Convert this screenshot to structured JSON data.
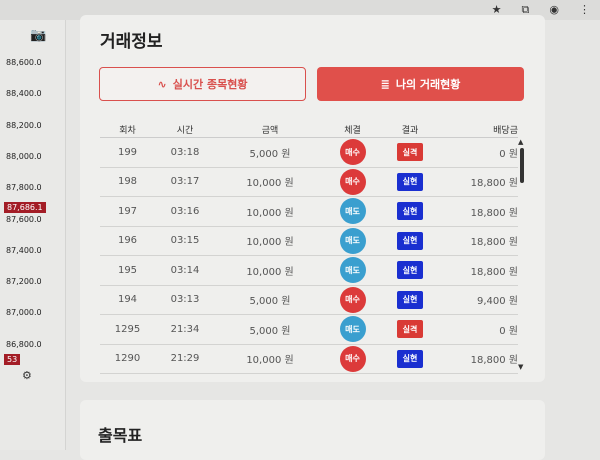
{
  "browser": {
    "icons": [
      "star-icon",
      "extension-icon",
      "profile-icon",
      "menu-icon"
    ]
  },
  "axis": {
    "ticks": [
      "88,600.0",
      "88,400.0",
      "88,200.0",
      "88,000.0",
      "87,800.0",
      "87,600.0",
      "87,400.0",
      "87,200.0",
      "87,000.0",
      "86,800.0"
    ],
    "current": "87,686.1",
    "badge": "53"
  },
  "trade": {
    "title": "거래정보",
    "btn_realtime": "실시간 종목현황",
    "btn_mine": "나의 거래현황",
    "headers": [
      "회차",
      "시간",
      "금액",
      "체결",
      "결과",
      "배당금"
    ],
    "rows": [
      {
        "round": "199",
        "time": "03:18",
        "amount": "5,000 원",
        "side": "매수",
        "result": "실격",
        "payout": "0 원"
      },
      {
        "round": "198",
        "time": "03:17",
        "amount": "10,000 원",
        "side": "매수",
        "result": "실현",
        "payout": "18,800 원"
      },
      {
        "round": "197",
        "time": "03:16",
        "amount": "10,000 원",
        "side": "매도",
        "result": "실현",
        "payout": "18,800 원"
      },
      {
        "round": "196",
        "time": "03:15",
        "amount": "10,000 원",
        "side": "매도",
        "result": "실현",
        "payout": "18,800 원"
      },
      {
        "round": "195",
        "time": "03:14",
        "amount": "10,000 원",
        "side": "매도",
        "result": "실현",
        "payout": "18,800 원"
      },
      {
        "round": "194",
        "time": "03:13",
        "amount": "5,000 원",
        "side": "매수",
        "result": "실현",
        "payout": "9,400 원"
      },
      {
        "round": "1295",
        "time": "21:34",
        "amount": "5,000 원",
        "side": "매도",
        "result": "실격",
        "payout": "0 원"
      },
      {
        "round": "1290",
        "time": "21:29",
        "amount": "10,000 원",
        "side": "매수",
        "result": "실현",
        "payout": "18,800 원"
      }
    ]
  },
  "colors": {
    "buy": "#dc3a3a",
    "sell": "#3a9fcf",
    "win": "#1a2fd0",
    "lose": "#d93a35",
    "accent": "#e0504b"
  },
  "section2": {
    "title": "출목표"
  }
}
